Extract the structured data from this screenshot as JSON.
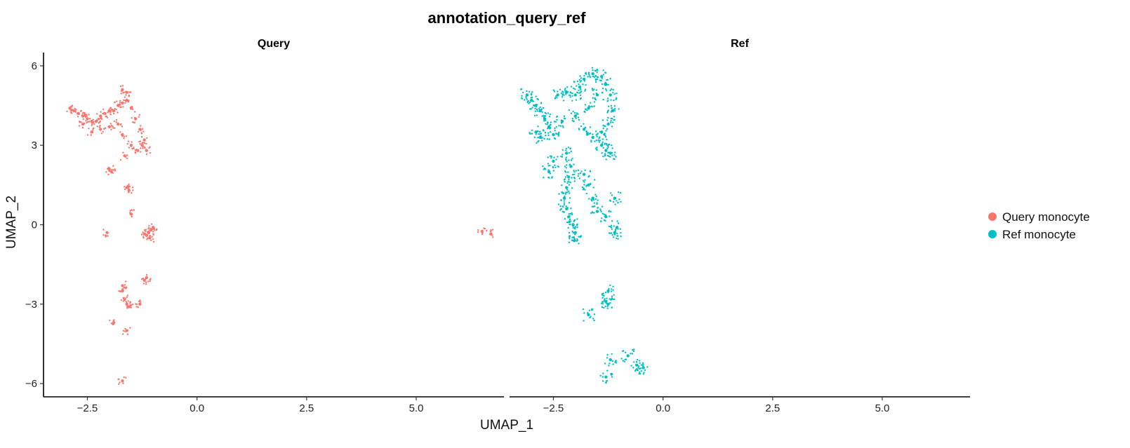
{
  "chart_data": {
    "type": "scatter",
    "title": "annotation_query_ref",
    "xlabel": "UMAP_1",
    "ylabel": "UMAP_2",
    "xlim": [
      -3.5,
      7.0
    ],
    "ylim": [
      -6.5,
      6.5
    ],
    "x_ticks": [
      -2.5,
      0.0,
      2.5,
      5.0
    ],
    "x_tick_labels": [
      "−2.5",
      "0.0",
      "2.5",
      "5.0"
    ],
    "y_ticks": [
      6,
      3,
      0,
      -3,
      -6
    ],
    "y_tick_labels": [
      "6",
      "3",
      "0",
      "−3",
      "−6"
    ],
    "grid": false,
    "legend_position": "right",
    "panels": [
      {
        "label": "Query",
        "series": "Query monocyte",
        "points": [
          [
            -2.9,
            4.4
          ],
          [
            -2.8,
            4.3
          ],
          [
            -2.7,
            4.2
          ],
          [
            -2.6,
            4.1
          ],
          [
            -2.5,
            4.0
          ],
          [
            -2.4,
            3.9
          ],
          [
            -2.3,
            3.9
          ],
          [
            -2.2,
            4.1
          ],
          [
            -2.1,
            4.2
          ],
          [
            -2.0,
            4.3
          ],
          [
            -1.9,
            4.3
          ],
          [
            -1.8,
            4.5
          ],
          [
            -1.7,
            4.6
          ],
          [
            -1.6,
            4.7
          ],
          [
            -1.5,
            4.4
          ],
          [
            -1.4,
            4.0
          ],
          [
            -1.3,
            3.6
          ],
          [
            -1.2,
            3.2
          ],
          [
            -1.25,
            3.0
          ],
          [
            -1.5,
            3.0
          ],
          [
            -1.65,
            2.6
          ],
          [
            -1.7,
            3.4
          ],
          [
            -1.8,
            3.8
          ],
          [
            -2.0,
            3.7
          ],
          [
            -2.2,
            3.6
          ],
          [
            -2.4,
            3.5
          ],
          [
            -2.6,
            3.8
          ],
          [
            -1.35,
            2.8
          ],
          [
            -1.15,
            2.8
          ],
          [
            -1.7,
            5.1
          ],
          [
            -1.6,
            5.0
          ],
          [
            -2.0,
            2.1
          ],
          [
            -1.95,
            2.0
          ],
          [
            -1.6,
            1.4
          ],
          [
            -1.55,
            1.3
          ],
          [
            -1.5,
            0.4
          ],
          [
            -2.05,
            -0.3
          ],
          [
            -1.2,
            -0.35
          ],
          [
            -1.15,
            -0.4
          ],
          [
            -1.1,
            -0.3
          ],
          [
            -1.05,
            -0.2
          ],
          [
            -1.0,
            -0.1
          ],
          [
            -1.08,
            -0.5
          ],
          [
            -1.2,
            -2.1
          ],
          [
            -1.15,
            -2.0
          ],
          [
            -1.7,
            -2.5
          ],
          [
            -1.65,
            -2.8
          ],
          [
            -1.6,
            -3.0
          ],
          [
            -1.55,
            -3.1
          ],
          [
            -1.7,
            -2.3
          ],
          [
            -1.3,
            -3.0
          ],
          [
            -1.9,
            -3.7
          ],
          [
            -1.6,
            -4.0
          ],
          [
            -1.7,
            -5.9
          ],
          [
            6.5,
            -0.25
          ],
          [
            6.7,
            -0.35
          ]
        ]
      },
      {
        "label": "Ref",
        "series": "Ref monocyte",
        "points": [
          [
            -3.1,
            4.9
          ],
          [
            -3.0,
            4.7
          ],
          [
            -2.9,
            4.5
          ],
          [
            -2.8,
            4.3
          ],
          [
            -2.7,
            4.0
          ],
          [
            -2.6,
            3.7
          ],
          [
            -2.9,
            3.5
          ],
          [
            -2.8,
            3.3
          ],
          [
            -2.5,
            3.4
          ],
          [
            -2.3,
            3.9
          ],
          [
            -2.4,
            4.9
          ],
          [
            -2.2,
            5.0
          ],
          [
            -2.0,
            4.9
          ],
          [
            -1.9,
            5.2
          ],
          [
            -1.8,
            5.5
          ],
          [
            -1.6,
            5.7
          ],
          [
            -1.4,
            5.6
          ],
          [
            -1.3,
            5.3
          ],
          [
            -1.2,
            4.9
          ],
          [
            -1.15,
            4.3
          ],
          [
            -1.25,
            3.8
          ],
          [
            -1.4,
            3.5
          ],
          [
            -1.6,
            3.3
          ],
          [
            -1.8,
            3.6
          ],
          [
            -2.0,
            4.1
          ],
          [
            -1.7,
            4.4
          ],
          [
            -1.5,
            4.9
          ],
          [
            -1.4,
            3.0
          ],
          [
            -1.3,
            2.8
          ],
          [
            -1.2,
            2.7
          ],
          [
            -2.2,
            2.7
          ],
          [
            -2.1,
            2.2
          ],
          [
            -2.15,
            1.8
          ],
          [
            -2.2,
            1.4
          ],
          [
            -2.25,
            1.0
          ],
          [
            -2.2,
            0.6
          ],
          [
            -2.15,
            0.3
          ],
          [
            -2.05,
            0.0
          ],
          [
            -2.0,
            -0.3
          ],
          [
            -2.02,
            -0.6
          ],
          [
            -1.8,
            1.9
          ],
          [
            -1.7,
            1.5
          ],
          [
            -1.6,
            1.0
          ],
          [
            -1.5,
            0.5
          ],
          [
            -1.3,
            0.3
          ],
          [
            -1.1,
            1.0
          ],
          [
            -1.05,
            -0.1
          ],
          [
            -1.1,
            -0.3
          ],
          [
            -2.6,
            2.0
          ],
          [
            -2.5,
            2.4
          ],
          [
            -1.25,
            -2.5
          ],
          [
            -1.3,
            -2.9
          ],
          [
            -1.25,
            -3.0
          ],
          [
            -1.7,
            -3.4
          ],
          [
            -1.2,
            -5.1
          ],
          [
            -0.8,
            -4.95
          ],
          [
            -0.6,
            -5.3
          ],
          [
            -0.45,
            -5.4
          ],
          [
            -1.3,
            -5.75
          ]
        ]
      }
    ],
    "legend": [
      {
        "label": "Query monocyte",
        "color": "#F8766D"
      },
      {
        "label": "Ref monocyte",
        "color": "#00BFC4"
      }
    ]
  }
}
